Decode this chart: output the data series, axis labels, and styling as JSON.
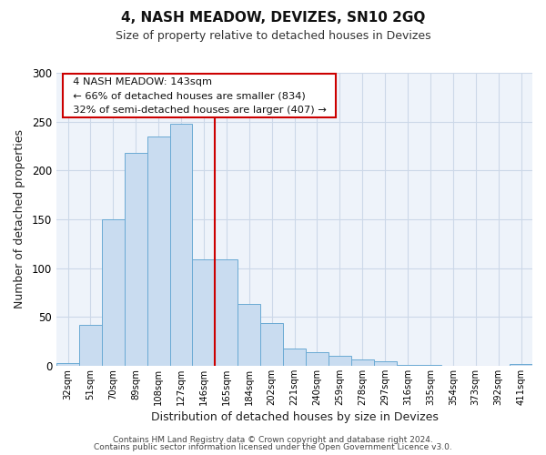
{
  "title": "4, NASH MEADOW, DEVIZES, SN10 2GQ",
  "subtitle": "Size of property relative to detached houses in Devizes",
  "xlabel": "Distribution of detached houses by size in Devizes",
  "ylabel": "Number of detached properties",
  "bar_labels": [
    "32sqm",
    "51sqm",
    "70sqm",
    "89sqm",
    "108sqm",
    "127sqm",
    "146sqm",
    "165sqm",
    "184sqm",
    "202sqm",
    "221sqm",
    "240sqm",
    "259sqm",
    "278sqm",
    "297sqm",
    "316sqm",
    "335sqm",
    "354sqm",
    "373sqm",
    "392sqm",
    "411sqm"
  ],
  "bar_values": [
    3,
    42,
    150,
    218,
    235,
    248,
    109,
    109,
    63,
    44,
    18,
    14,
    10,
    6,
    5,
    1,
    1,
    0,
    0,
    0,
    2
  ],
  "bar_color": "#c9dcf0",
  "bar_edge_color": "#6aaad4",
  "vline_index": 6,
  "ylim": [
    0,
    300
  ],
  "yticks": [
    0,
    50,
    100,
    150,
    200,
    250,
    300
  ],
  "annotation_title": "4 NASH MEADOW: 143sqm",
  "annotation_line1": "← 66% of detached houses are smaller (834)",
  "annotation_line2": "32% of semi-detached houses are larger (407) →",
  "footer_line1": "Contains HM Land Registry data © Crown copyright and database right 2024.",
  "footer_line2": "Contains public sector information licensed under the Open Government Licence v3.0.",
  "vline_color": "#cc0000",
  "annotation_box_edge": "#cc0000",
  "background_color": "#ffffff",
  "grid_color": "#ccd8e8",
  "plot_bg_color": "#eef3fa"
}
